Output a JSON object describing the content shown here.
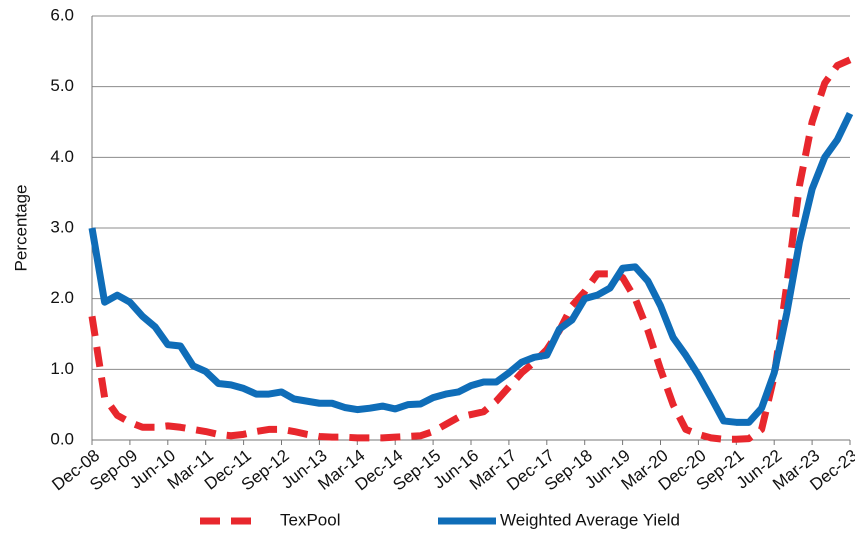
{
  "chart_data": {
    "type": "line",
    "y_label": "Percentage",
    "categories": [
      "Dec-08",
      null,
      null,
      "Sep-09",
      null,
      null,
      "Jun-10",
      null,
      null,
      "Mar-11",
      null,
      null,
      "Dec-11",
      null,
      null,
      "Sep-12",
      null,
      null,
      "Jun-13",
      null,
      null,
      "Mar-14",
      null,
      null,
      "Dec-14",
      null,
      null,
      "Sep-15",
      null,
      null,
      "Jun-16",
      null,
      null,
      "Mar-17",
      null,
      null,
      "Dec-17",
      null,
      null,
      "Sep-18",
      null,
      null,
      "Jun-19",
      null,
      null,
      "Mar-20",
      null,
      null,
      "Dec-20",
      null,
      null,
      "Sep-21",
      null,
      null,
      "Jun-22",
      null,
      null,
      "Mar-23",
      null,
      null,
      "Dec-23"
    ],
    "series": [
      {
        "name": "TexPool",
        "color": "#e8272d",
        "dashed": true,
        "values": [
          1.75,
          0.6,
          0.35,
          0.25,
          0.18,
          0.18,
          0.2,
          0.18,
          0.15,
          0.12,
          0.08,
          0.06,
          0.08,
          0.12,
          0.15,
          0.15,
          0.12,
          0.08,
          0.05,
          0.04,
          0.04,
          0.03,
          0.03,
          0.03,
          0.04,
          0.05,
          0.06,
          0.12,
          0.22,
          0.32,
          0.36,
          0.4,
          0.55,
          0.75,
          0.95,
          1.1,
          1.28,
          1.55,
          1.9,
          2.1,
          2.35,
          2.35,
          2.3,
          2.0,
          1.55,
          1.0,
          0.5,
          0.15,
          0.08,
          0.03,
          0.01,
          0.01,
          0.02,
          0.15,
          0.9,
          2.2,
          3.6,
          4.5,
          5.05,
          5.3,
          5.38
        ]
      },
      {
        "name": "Weighted Average Yield",
        "color": "#0f6db8",
        "dashed": false,
        "values": [
          3.0,
          1.95,
          2.05,
          1.95,
          1.75,
          1.6,
          1.35,
          1.33,
          1.05,
          0.97,
          0.8,
          0.78,
          0.73,
          0.65,
          0.65,
          0.68,
          0.58,
          0.55,
          0.52,
          0.52,
          0.46,
          0.43,
          0.45,
          0.48,
          0.44,
          0.5,
          0.51,
          0.6,
          0.65,
          0.68,
          0.77,
          0.82,
          0.82,
          0.95,
          1.1,
          1.17,
          1.2,
          1.57,
          1.7,
          2.0,
          2.05,
          2.15,
          2.43,
          2.45,
          2.25,
          1.9,
          1.45,
          1.2,
          0.92,
          0.6,
          0.27,
          0.25,
          0.25,
          0.45,
          0.95,
          1.8,
          2.8,
          3.55,
          4.0,
          4.25,
          4.62
        ]
      }
    ],
    "ylim": [
      0,
      6
    ],
    "yticks": [
      {
        "value": 0,
        "label": "0.0"
      },
      {
        "value": 1,
        "label": "1.0"
      },
      {
        "value": 2,
        "label": "2.0"
      },
      {
        "value": 3,
        "label": "3.0"
      },
      {
        "value": 4,
        "label": "4.0"
      },
      {
        "value": 5,
        "label": "5.0"
      },
      {
        "value": 6,
        "label": "6.0"
      }
    ],
    "grid": true,
    "legend": "bottom"
  }
}
